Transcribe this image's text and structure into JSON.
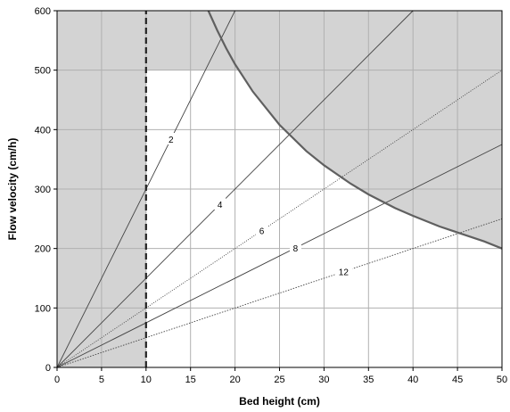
{
  "chart_data": {
    "type": "line",
    "title": "",
    "xlabel": "Bed height (cm)",
    "ylabel": "Flow velocity (cm/h)",
    "xlim": [
      0,
      50
    ],
    "ylim": [
      0,
      600
    ],
    "xticks": [
      0,
      5,
      10,
      15,
      20,
      25,
      30,
      35,
      40,
      45,
      50
    ],
    "yticks": [
      0,
      100,
      200,
      300,
      400,
      500,
      600
    ],
    "grid": true,
    "legend": "none",
    "series": [
      {
        "name": "2",
        "x": [
          0,
          20
        ],
        "y": [
          0,
          600
        ]
      },
      {
        "name": "4",
        "x": [
          0,
          40
        ],
        "y": [
          0,
          600
        ]
      },
      {
        "name": "6",
        "x": [
          0,
          50
        ],
        "y": [
          0,
          500
        ]
      },
      {
        "name": "8",
        "x": [
          0,
          50
        ],
        "y": [
          0,
          375
        ]
      },
      {
        "name": "12",
        "x": [
          0,
          50
        ],
        "y": [
          0,
          250
        ]
      }
    ],
    "pressure_limit_curve": {
      "x": [
        17,
        18,
        19,
        20,
        22,
        25,
        28,
        30,
        33,
        35,
        38,
        40,
        43,
        45,
        48,
        50
      ],
      "y": [
        600,
        567,
        537,
        510,
        464,
        408,
        364,
        340,
        309,
        291,
        268,
        255,
        237,
        227,
        212,
        200
      ]
    },
    "shaded_regions": [
      {
        "description": "bed height below 10",
        "x": [
          0,
          10
        ],
        "y": [
          0,
          600
        ]
      },
      {
        "description": "flow velocity above 500",
        "x": [
          0,
          50
        ],
        "y": [
          500,
          600
        ]
      },
      {
        "description": "beyond pressure limit curve",
        "x": [
          17,
          50
        ],
        "y": [
          200,
          600
        ]
      }
    ],
    "reference_line": {
      "x": 10,
      "style": "dashed"
    }
  },
  "colors": {
    "shade": "#d3d3d3",
    "grid": "#b0b0b0",
    "curve": "#606060",
    "lines": "#444444"
  }
}
